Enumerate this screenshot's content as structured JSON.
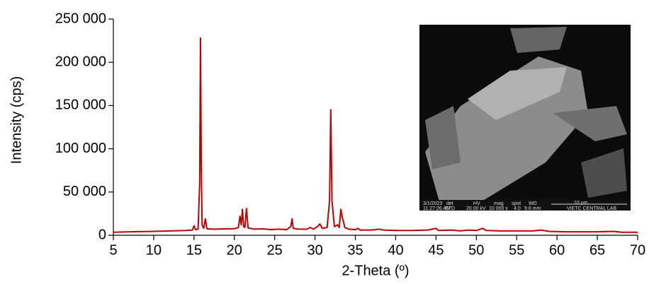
{
  "chart_data": {
    "type": "line",
    "x_label": "2-Theta (º)",
    "y_label": "Intensity (cps)",
    "xlim": [
      5,
      70
    ],
    "ylim": [
      0,
      250000
    ],
    "xticks": [
      5,
      10,
      15,
      20,
      25,
      30,
      35,
      40,
      45,
      50,
      55,
      60,
      65,
      70
    ],
    "yticks": [
      0,
      {
        "value": 50000,
        "label": "50 000"
      },
      {
        "value": 100000,
        "label": "100 000"
      },
      {
        "value": 150000,
        "label": "150 000"
      },
      {
        "value": 200000,
        "label": "200 000"
      },
      {
        "value": 250000,
        "label": "250 000"
      }
    ],
    "grid": false,
    "series": [
      {
        "color": "#c00000",
        "x": [
          5,
          7,
          10,
          12,
          14,
          14.8,
          15.0,
          15.2,
          15.5,
          15.7,
          15.8,
          15.9,
          16.0,
          16.2,
          16.4,
          16.6,
          17.5,
          19,
          20,
          20.5,
          20.7,
          20.85,
          21.0,
          21.15,
          21.3,
          21.5,
          21.7,
          22.5,
          23.5,
          24.5,
          25.5,
          26.5,
          27.0,
          27.15,
          27.3,
          28,
          29,
          29.4,
          29.8,
          30.3,
          30.6,
          30.9,
          31.5,
          31.8,
          31.95,
          32.1,
          32.4,
          32.8,
          33.0,
          33.2,
          33.4,
          33.7,
          34.2,
          35,
          35.3,
          35.6,
          37,
          38,
          38.5,
          40,
          42,
          44,
          45,
          45.3,
          47,
          48,
          49,
          50,
          50.8,
          51.2,
          53,
          55,
          57,
          58,
          59,
          61,
          63,
          65,
          67,
          68,
          70
        ],
        "values": [
          3500,
          4000,
          4500,
          5000,
          5500,
          6000,
          11000,
          6500,
          7000,
          60000,
          228000,
          80000,
          12000,
          8000,
          19000,
          7500,
          7000,
          7500,
          7500,
          9000,
          22000,
          12000,
          30000,
          10000,
          9000,
          31000,
          8500,
          7000,
          7500,
          6500,
          7000,
          6500,
          10000,
          19000,
          8000,
          7000,
          7000,
          9000,
          7000,
          10000,
          13000,
          8000,
          9000,
          40000,
          145000,
          40000,
          10000,
          12000,
          9000,
          30000,
          20000,
          9000,
          7000,
          6500,
          8000,
          6000,
          6000,
          7000,
          6000,
          5500,
          5500,
          6000,
          8000,
          5500,
          6000,
          5000,
          6000,
          5500,
          8000,
          5500,
          5000,
          5000,
          5000,
          6000,
          4500,
          4000,
          4000,
          4000,
          4500,
          3500,
          3500
        ]
      }
    ]
  },
  "inset": {
    "info_bar": [
      "3/1/2023",
      "11:27:26 AM",
      "det",
      "ETD",
      "HV",
      "20.00 kV",
      "mag",
      "10 000 x",
      "spot",
      "4.0",
      "WD",
      "9.6 mm",
      "10 µm",
      "VIETC CENTRAL LAB"
    ]
  }
}
